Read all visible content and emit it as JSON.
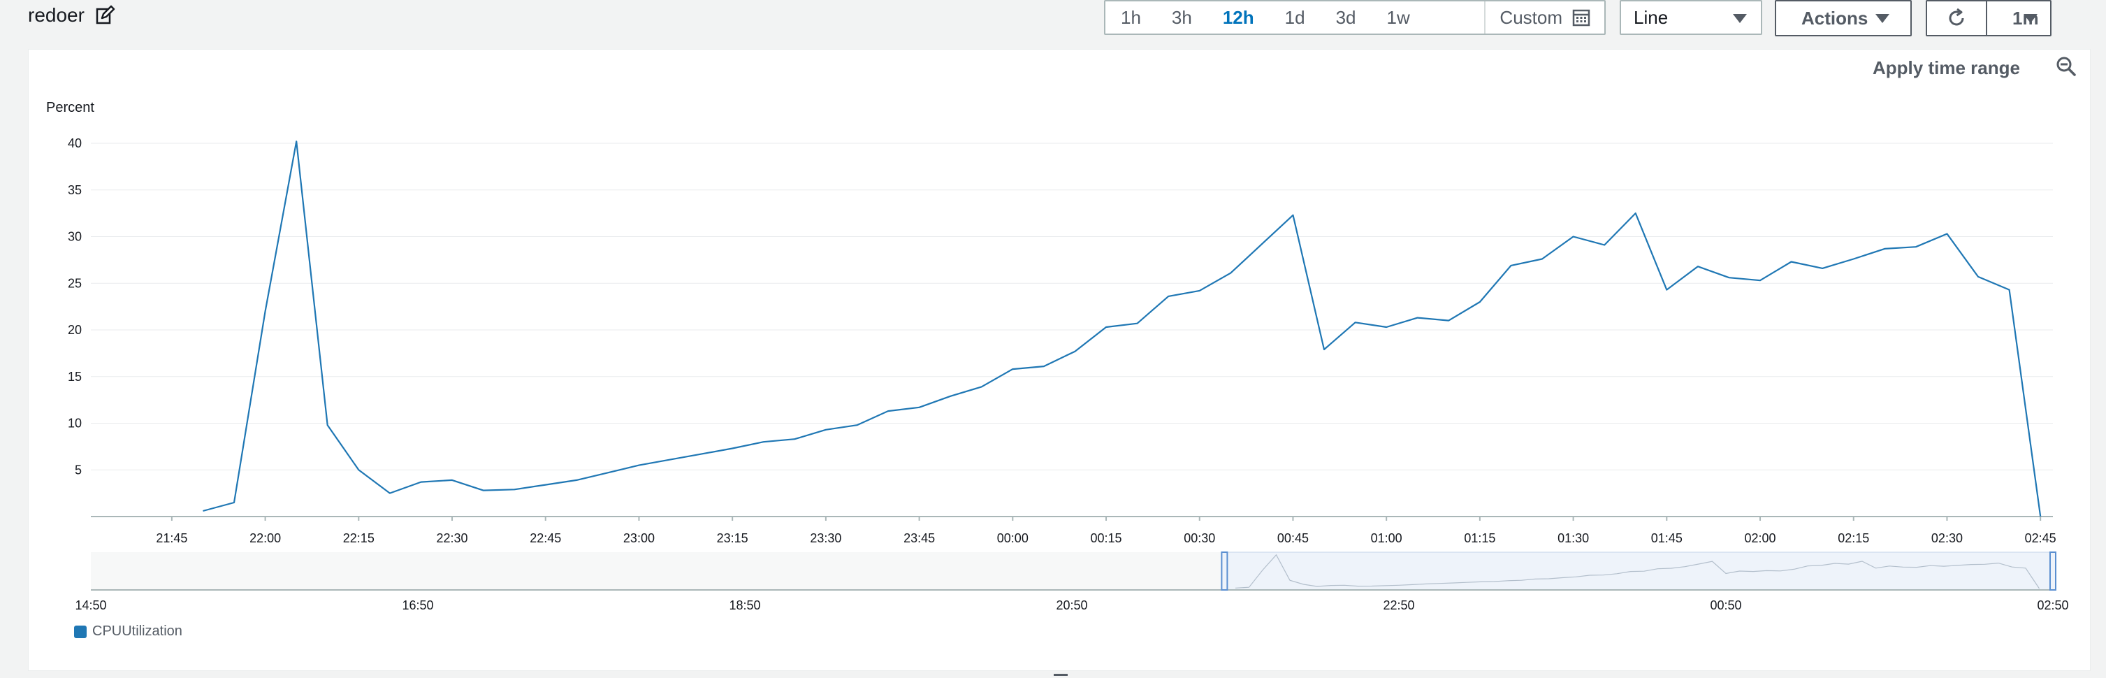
{
  "header": {
    "title": "redoer",
    "ranges": [
      "1h",
      "3h",
      "12h",
      "1d",
      "3d",
      "1w"
    ],
    "active_range": "12h",
    "custom_label": "Custom",
    "view_select": "Line",
    "actions_label": "Actions",
    "refresh_interval": "1m"
  },
  "panel": {
    "apply_time_range": "Apply time range",
    "y_unit": "Percent",
    "legend_label": "CPUUtilization"
  },
  "colors": {
    "series": "#1f77b4",
    "accent": "#0073bb"
  },
  "chart_data": {
    "type": "line",
    "ylabel": "Percent",
    "ylim": [
      0,
      40
    ],
    "yticks": [
      5,
      10,
      15,
      20,
      25,
      30,
      35,
      40
    ],
    "xticks": [
      "21:45",
      "22:00",
      "22:15",
      "22:30",
      "22:45",
      "23:00",
      "23:15",
      "23:30",
      "23:45",
      "00:00",
      "00:15",
      "00:30",
      "00:45",
      "01:00",
      "01:15",
      "01:30",
      "01:45",
      "02:00",
      "02:15",
      "02:30",
      "02:45"
    ],
    "grid": true,
    "legend": "bottom-left",
    "series": [
      {
        "name": "CPUUtilization",
        "points": [
          [
            "21:50",
            0.6
          ],
          [
            "21:55",
            1.5
          ],
          [
            "22:00",
            22.0
          ],
          [
            "22:05",
            40.2
          ],
          [
            "22:10",
            9.8
          ],
          [
            "22:15",
            5.0
          ],
          [
            "22:20",
            2.5
          ],
          [
            "22:25",
            3.7
          ],
          [
            "22:30",
            3.9
          ],
          [
            "22:35",
            2.8
          ],
          [
            "22:40",
            2.9
          ],
          [
            "22:45",
            3.4
          ],
          [
            "22:50",
            3.9
          ],
          [
            "22:55",
            4.7
          ],
          [
            "23:00",
            5.5
          ],
          [
            "23:05",
            6.1
          ],
          [
            "23:10",
            6.7
          ],
          [
            "23:15",
            7.3
          ],
          [
            "23:20",
            8.0
          ],
          [
            "23:25",
            8.3
          ],
          [
            "23:30",
            9.3
          ],
          [
            "23:35",
            9.8
          ],
          [
            "23:40",
            11.3
          ],
          [
            "23:45",
            11.7
          ],
          [
            "23:50",
            12.9
          ],
          [
            "23:55",
            13.9
          ],
          [
            "00:00",
            15.8
          ],
          [
            "00:05",
            16.1
          ],
          [
            "00:10",
            17.7
          ],
          [
            "00:15",
            20.3
          ],
          [
            "00:20",
            20.7
          ],
          [
            "00:25",
            23.6
          ],
          [
            "00:30",
            24.2
          ],
          [
            "00:35",
            26.1
          ],
          [
            "00:40",
            29.2
          ],
          [
            "00:45",
            32.3
          ],
          [
            "00:50",
            17.9
          ],
          [
            "00:55",
            20.8
          ],
          [
            "01:00",
            20.3
          ],
          [
            "01:05",
            21.3
          ],
          [
            "01:10",
            21.0
          ],
          [
            "01:15",
            23.0
          ],
          [
            "01:20",
            26.9
          ],
          [
            "01:25",
            27.6
          ],
          [
            "01:30",
            30.0
          ],
          [
            "01:35",
            29.1
          ],
          [
            "01:40",
            32.5
          ],
          [
            "01:45",
            24.3
          ],
          [
            "01:50",
            26.8
          ],
          [
            "01:55",
            25.6
          ],
          [
            "02:00",
            25.3
          ],
          [
            "02:05",
            27.3
          ],
          [
            "02:10",
            26.6
          ],
          [
            "02:15",
            27.6
          ],
          [
            "02:20",
            28.7
          ],
          [
            "02:25",
            28.9
          ],
          [
            "02:30",
            30.3
          ],
          [
            "02:35",
            25.7
          ],
          [
            "02:40",
            24.3
          ],
          [
            "02:45",
            0.0
          ]
        ]
      }
    ],
    "overview": {
      "xticks": [
        "14:50",
        "16:50",
        "18:50",
        "20:50",
        "22:50",
        "00:50",
        "02:50"
      ],
      "selection": [
        "21:46",
        "02:50"
      ]
    }
  }
}
